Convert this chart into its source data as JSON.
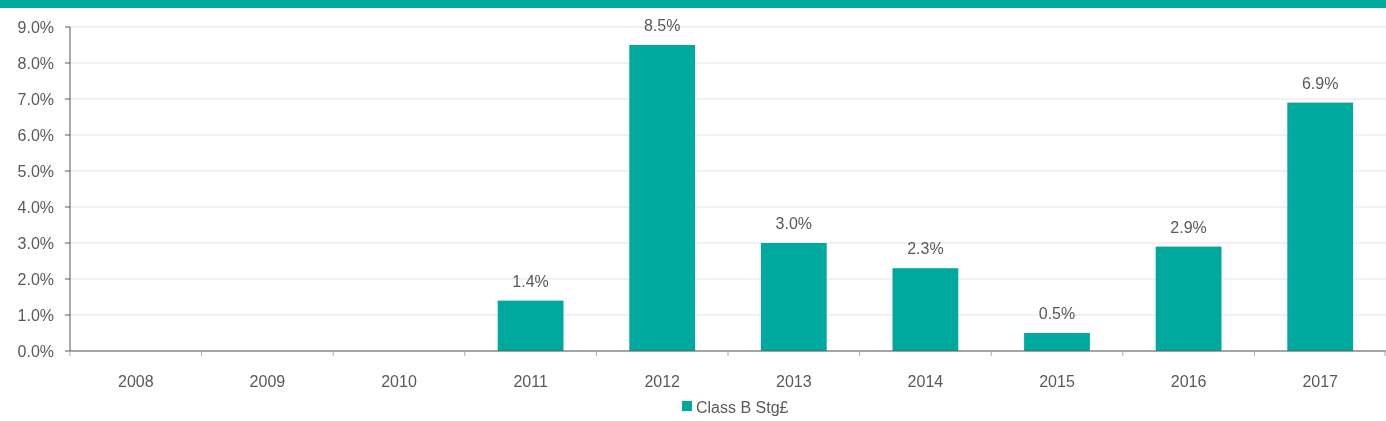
{
  "chart_data": {
    "type": "bar",
    "categories": [
      "2008",
      "2009",
      "2010",
      "2011",
      "2012",
      "2013",
      "2014",
      "2015",
      "2016",
      "2017"
    ],
    "series": [
      {
        "name": "Class B Stg£",
        "color": "#00a99d",
        "values": [
          null,
          null,
          null,
          1.4,
          8.5,
          3.0,
          2.3,
          0.5,
          2.9,
          6.9
        ]
      }
    ],
    "value_labels": [
      null,
      null,
      null,
      "1.4%",
      "8.5%",
      "3.0%",
      "2.3%",
      "0.5%",
      "2.9%",
      "6.9%"
    ],
    "ylim": [
      0,
      9
    ],
    "yticks": [
      {
        "value": 0,
        "label": "0.0%"
      },
      {
        "value": 1,
        "label": "1.0%"
      },
      {
        "value": 2,
        "label": "2.0%"
      },
      {
        "value": 3,
        "label": "3.0%"
      },
      {
        "value": 4,
        "label": "4.0%"
      },
      {
        "value": 5,
        "label": "5.0%"
      },
      {
        "value": 6,
        "label": "6.0%"
      },
      {
        "value": 7,
        "label": "7.0%"
      },
      {
        "value": 8,
        "label": "8.0%"
      },
      {
        "value": 9,
        "label": "9.0%"
      }
    ],
    "grid": "y",
    "legend": "bottom"
  }
}
